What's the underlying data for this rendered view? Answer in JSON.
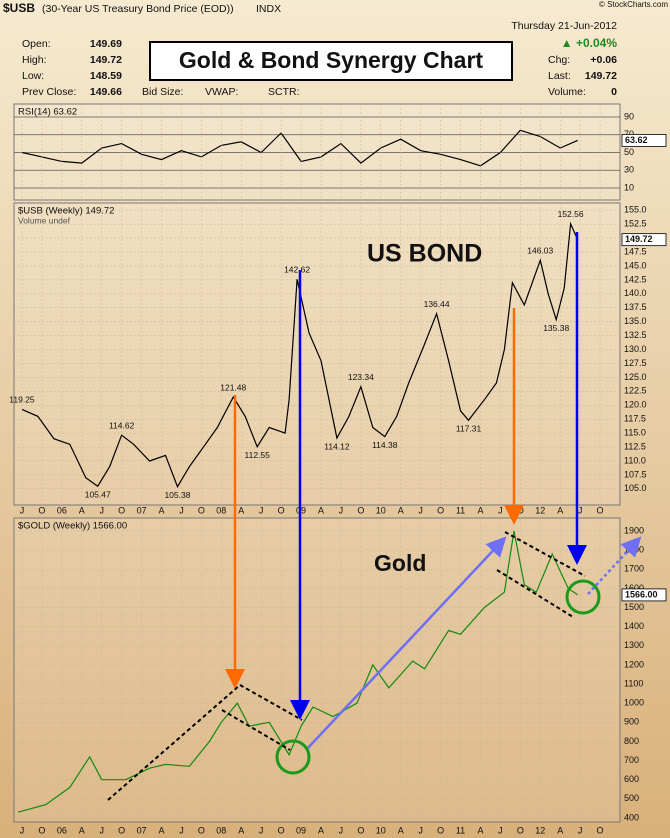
{
  "header": {
    "symbol": "$USB",
    "description": "(30-Year US Treasury Bond Price (EOD))",
    "exchange": "INDX",
    "date": "Thursday  21-Jun-2012",
    "watermark": "© StockCharts.com",
    "change_pct": "▲ +0.04%",
    "quote_left": [
      [
        "Open:",
        "149.69"
      ],
      [
        "High:",
        "149.72"
      ],
      [
        "Low:",
        "148.59"
      ],
      [
        "Prev Close:",
        "149.66"
      ]
    ],
    "quote_mid": [
      "Bid Size:",
      "VWAP:",
      "SCTR:"
    ],
    "quote_right": [
      [
        "Chg:",
        "+0.06"
      ],
      [
        "Last:",
        "149.72"
      ],
      [
        "Volume:",
        "0"
      ]
    ],
    "banner": "Gold & Bond Synergy Chart"
  },
  "chart_data": [
    {
      "type": "line",
      "title": "RSI(14) 63.62",
      "color": "#000000",
      "x": [
        2005.5,
        2005.75,
        2006,
        2006.25,
        2006.5,
        2006.75,
        2007,
        2007.25,
        2007.5,
        2007.75,
        2008,
        2008.25,
        2008.5,
        2008.75,
        2009,
        2009.25,
        2009.5,
        2009.75,
        2010,
        2010.25,
        2010.5,
        2010.75,
        2011,
        2011.25,
        2011.5,
        2011.75,
        2012,
        2012.25,
        2012.47
      ],
      "values": [
        50,
        45,
        40,
        38,
        55,
        60,
        48,
        42,
        52,
        45,
        58,
        62,
        50,
        72,
        40,
        45,
        60,
        38,
        55,
        65,
        52,
        48,
        42,
        35,
        50,
        75,
        68,
        55,
        63.62
      ],
      "xlim": [
        2005.4,
        2013.0
      ],
      "ylim": [
        -3.5,
        104.6
      ],
      "yticks": [
        10,
        30,
        50,
        70,
        90
      ],
      "grid": true
    },
    {
      "type": "line",
      "title": "$USB (Weekly) 149.72",
      "subtitle": "Volume undef",
      "annotation": "US BOND",
      "color": "#000000",
      "x": [
        2005.5,
        2005.7,
        2005.9,
        2006.1,
        2006.3,
        2006.45,
        2006.6,
        2006.75,
        2006.9,
        2007.1,
        2007.3,
        2007.45,
        2007.6,
        2007.8,
        2007.95,
        2008.15,
        2008.3,
        2008.45,
        2008.6,
        2008.8,
        2008.85,
        2008.95,
        2009.1,
        2009.25,
        2009.45,
        2009.6,
        2009.75,
        2009.9,
        2010.05,
        2010.2,
        2010.35,
        2010.55,
        2010.7,
        2010.85,
        2011.0,
        2011.1,
        2011.3,
        2011.45,
        2011.55,
        2011.65,
        2011.8,
        2012.0,
        2012.1,
        2012.2,
        2012.3,
        2012.38,
        2012.47
      ],
      "values": [
        119.25,
        118,
        114,
        113,
        107,
        105.47,
        109,
        114.62,
        113,
        110,
        111,
        105.38,
        109,
        113,
        116,
        121.48,
        118,
        112.55,
        116,
        115,
        121,
        142.62,
        133,
        128,
        114.12,
        118,
        123.34,
        116,
        114.38,
        118,
        124,
        131,
        136.44,
        128,
        119,
        117.31,
        121,
        124,
        130,
        142,
        138,
        146.03,
        140,
        135.38,
        141,
        152.56,
        149.72
      ],
      "point_labels": [
        {
          "x": 2005.5,
          "value": 119.25
        },
        {
          "x": 2006.45,
          "value": 105.47
        },
        {
          "x": 2006.75,
          "value": 114.62
        },
        {
          "x": 2007.45,
          "value": 105.38
        },
        {
          "x": 2008.15,
          "value": 121.48
        },
        {
          "x": 2008.45,
          "value": 112.55
        },
        {
          "x": 2008.95,
          "value": 142.62
        },
        {
          "x": 2009.45,
          "value": 114.12
        },
        {
          "x": 2009.75,
          "value": 123.34
        },
        {
          "x": 2010.05,
          "value": 114.38
        },
        {
          "x": 2010.7,
          "value": 136.44
        },
        {
          "x": 2011.1,
          "value": 117.31
        },
        {
          "x": 2012.0,
          "value": 146.03
        },
        {
          "x": 2012.2,
          "value": 135.38
        },
        {
          "x": 2012.38,
          "value": 152.56
        }
      ],
      "xlim": [
        2005.4,
        2013.0
      ],
      "xticks": [
        {
          "value": 2005.5,
          "label": "J"
        },
        {
          "value": 2005.75,
          "label": "O"
        },
        {
          "value": 2006,
          "label": "06"
        },
        {
          "value": 2006.25,
          "label": "A"
        },
        {
          "value": 2006.5,
          "label": "J"
        },
        {
          "value": 2006.75,
          "label": "O"
        },
        {
          "value": 2007,
          "label": "07"
        },
        {
          "value": 2007.25,
          "label": "A"
        },
        {
          "value": 2007.5,
          "label": "J"
        },
        {
          "value": 2007.75,
          "label": "O"
        },
        {
          "value": 2008,
          "label": "08"
        },
        {
          "value": 2008.25,
          "label": "A"
        },
        {
          "value": 2008.5,
          "label": "J"
        },
        {
          "value": 2008.75,
          "label": "O"
        },
        {
          "value": 2009,
          "label": "09"
        },
        {
          "value": 2009.25,
          "label": "A"
        },
        {
          "value": 2009.5,
          "label": "J"
        },
        {
          "value": 2009.75,
          "label": "O"
        },
        {
          "value": 2010,
          "label": "10"
        },
        {
          "value": 2010.25,
          "label": "A"
        },
        {
          "value": 2010.5,
          "label": "J"
        },
        {
          "value": 2010.75,
          "label": "O"
        },
        {
          "value": 2011,
          "label": "11"
        },
        {
          "value": 2011.25,
          "label": "A"
        },
        {
          "value": 2011.5,
          "label": "J"
        },
        {
          "value": 2011.75,
          "label": "O"
        },
        {
          "value": 2012,
          "label": "12"
        },
        {
          "value": 2012.25,
          "label": "A"
        },
        {
          "value": 2012.5,
          "label": "J"
        },
        {
          "value": 2012.75,
          "label": "O"
        }
      ],
      "ylim": [
        102.1,
        156.3
      ],
      "yticks": [
        {
          "value": 105,
          "label": "105.0"
        },
        {
          "value": 107.5,
          "label": "107.5"
        },
        {
          "value": 110,
          "label": "110.0"
        },
        {
          "value": 112.5,
          "label": "112.5"
        },
        {
          "value": 115,
          "label": "115.0"
        },
        {
          "value": 117.5,
          "label": "117.5"
        },
        {
          "value": 120,
          "label": "120.0"
        },
        {
          "value": 122.5,
          "label": "122.5"
        },
        {
          "value": 125,
          "label": "125.0"
        },
        {
          "value": 127.5,
          "label": "127.5"
        },
        {
          "value": 130,
          "label": "130.0"
        },
        {
          "value": 132.5,
          "label": "132.5"
        },
        {
          "value": 135,
          "label": "135.0"
        },
        {
          "value": 137.5,
          "label": "137.5"
        },
        {
          "value": 140,
          "label": "140.0"
        },
        {
          "value": 142.5,
          "label": "142.5"
        },
        {
          "value": 145,
          "label": "145.0"
        },
        {
          "value": 147.5,
          "label": "147.5"
        },
        {
          "value": 150,
          "label": "150.0"
        },
        {
          "value": 152.5,
          "label": "152.5"
        },
        {
          "value": 155,
          "label": "155.0"
        }
      ],
      "grid": true
    },
    {
      "type": "line",
      "title": "$GOLD (Weekly) 1566.00",
      "annotation": "Gold",
      "color": "#138a13",
      "last_label": "1566.00",
      "x": [
        2005.45,
        2005.8,
        2006.1,
        2006.35,
        2006.5,
        2006.8,
        2007.1,
        2007.3,
        2007.6,
        2007.85,
        2008.0,
        2008.2,
        2008.35,
        2008.6,
        2008.85,
        2009.0,
        2009.15,
        2009.4,
        2009.7,
        2009.9,
        2010.1,
        2010.4,
        2010.55,
        2010.85,
        2011.0,
        2011.3,
        2011.55,
        2011.67,
        2011.8,
        2011.95,
        2012.15,
        2012.35,
        2012.47
      ],
      "values": [
        430,
        470,
        560,
        720,
        600,
        600,
        660,
        680,
        670,
        800,
        900,
        1000,
        880,
        900,
        730,
        880,
        980,
        930,
        1000,
        1200,
        1080,
        1220,
        1180,
        1380,
        1360,
        1500,
        1580,
        1900,
        1620,
        1580,
        1780,
        1600,
        1566
      ],
      "xlim": [
        2005.4,
        2013.0
      ],
      "xticks": [
        {
          "value": 2005.5,
          "label": "J"
        },
        {
          "value": 2005.75,
          "label": "O"
        },
        {
          "value": 2006,
          "label": "06"
        },
        {
          "value": 2006.25,
          "label": "A"
        },
        {
          "value": 2006.5,
          "label": "J"
        },
        {
          "value": 2006.75,
          "label": "O"
        },
        {
          "value": 2007,
          "label": "07"
        },
        {
          "value": 2007.25,
          "label": "A"
        },
        {
          "value": 2007.5,
          "label": "J"
        },
        {
          "value": 2007.75,
          "label": "O"
        },
        {
          "value": 2008,
          "label": "08"
        },
        {
          "value": 2008.25,
          "label": "A"
        },
        {
          "value": 2008.5,
          "label": "J"
        },
        {
          "value": 2008.75,
          "label": "O"
        },
        {
          "value": 2009,
          "label": "09"
        },
        {
          "value": 2009.25,
          "label": "A"
        },
        {
          "value": 2009.5,
          "label": "J"
        },
        {
          "value": 2009.75,
          "label": "O"
        },
        {
          "value": 2010,
          "label": "10"
        },
        {
          "value": 2010.25,
          "label": "A"
        },
        {
          "value": 2010.5,
          "label": "J"
        },
        {
          "value": 2010.75,
          "label": "O"
        },
        {
          "value": 2011,
          "label": "11"
        },
        {
          "value": 2011.25,
          "label": "A"
        },
        {
          "value": 2011.5,
          "label": "J"
        },
        {
          "value": 2011.75,
          "label": "O"
        },
        {
          "value": 2012,
          "label": "12"
        },
        {
          "value": 2012.25,
          "label": "A"
        },
        {
          "value": 2012.5,
          "label": "J"
        },
        {
          "value": 2012.75,
          "label": "O"
        }
      ],
      "ylim": [
        379,
        1968
      ],
      "yticks": [
        400,
        500,
        600,
        700,
        800,
        900,
        1000,
        1100,
        1200,
        1300,
        1400,
        1500,
        1600,
        1700,
        1800,
        1900
      ],
      "grid": true
    }
  ]
}
